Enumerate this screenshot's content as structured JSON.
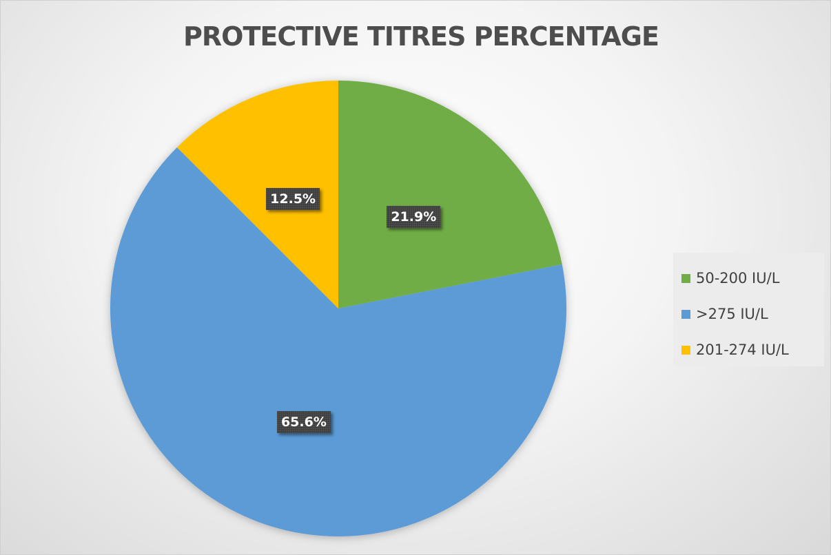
{
  "chart_data": {
    "type": "pie",
    "title": "PROTECTIVE TITRES PERCENTAGE",
    "slices": [
      {
        "label": "50-200 IU/L",
        "value": 21.9,
        "value_label": "21.9%",
        "color": "#70ad47"
      },
      {
        "label": ">275 IU/L",
        "value": 65.6,
        "value_label": "65.6%",
        "color": "#5b9bd5"
      },
      {
        "label": "201-274 IU/L",
        "value": 12.5,
        "value_label": "12.5%",
        "color": "#ffc000"
      }
    ],
    "start_angle": "12 o'clock",
    "direction": "clockwise",
    "legend": {
      "position": "right",
      "items": [
        "50-200 IU/L",
        ">275 IU/L",
        "201-274 IU/L"
      ]
    }
  }
}
